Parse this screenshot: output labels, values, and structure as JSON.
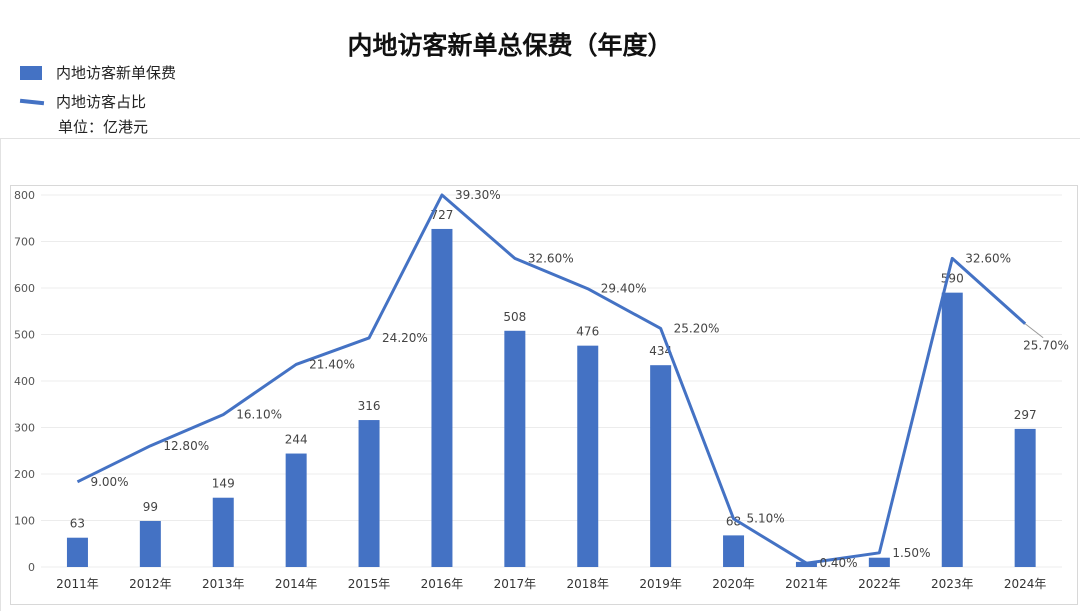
{
  "title": "内地访客新单总保费（年度）",
  "legend": {
    "bar_label": "内地访客新单保费",
    "line_label": "内地访客占比",
    "unit": "单位：亿港元"
  },
  "colors": {
    "accent": "#4472c4"
  },
  "chart_data": {
    "type": "bar",
    "categories": [
      "2011年",
      "2012年",
      "2013年",
      "2014年",
      "2015年",
      "2016年",
      "2017年",
      "2018年",
      "2019年",
      "2020年",
      "2021年",
      "2022年",
      "2023年",
      "2024年"
    ],
    "series": [
      {
        "name": "内地访客新单保费",
        "type": "bar",
        "values": [
          63,
          99,
          149,
          244,
          316,
          727,
          508,
          476,
          434,
          68,
          11,
          20,
          590,
          297
        ],
        "labels": [
          "63",
          "99",
          "149",
          "244",
          "316",
          "727",
          "508",
          "476",
          "434",
          "68",
          "",
          "",
          "590",
          "297"
        ]
      },
      {
        "name": "内地访客占比",
        "type": "line",
        "values": [
          9.0,
          12.8,
          16.1,
          21.4,
          24.2,
          39.3,
          32.6,
          29.4,
          25.2,
          5.1,
          0.4,
          1.5,
          32.6,
          25.7
        ],
        "labels": [
          "9.00%",
          "12.80%",
          "16.10%",
          "21.40%",
          "24.20%",
          "39.30%",
          "32.60%",
          "29.40%",
          "25.20%",
          "5.10%",
          "0.40%",
          "1.50%",
          "32.60%",
          "25.70%"
        ]
      }
    ],
    "y_ticks": [
      "0",
      "100",
      "200",
      "300",
      "400",
      "500",
      "600",
      "700",
      "800"
    ],
    "ylim": [
      0,
      800
    ],
    "grid": true
  }
}
